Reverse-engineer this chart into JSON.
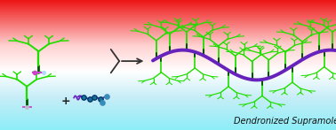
{
  "title": "Dendronized Supramolecular Polymers",
  "title_fontsize": 7.0,
  "title_color": "#111111",
  "dendrimer_color": "#22dd00",
  "stem_color": "#005500",
  "polymer_color": "#6622bb",
  "arrow_color": "#333333",
  "ball_color": "#003366",
  "small_mol_color": "#8833cc",
  "figsize": [
    3.78,
    1.47
  ],
  "dpi": 100,
  "bg_colors": [
    [
      0.0,
      [
        0.55,
        0.93,
        0.97
      ]
    ],
    [
      0.25,
      [
        0.78,
        0.93,
        0.97
      ]
    ],
    [
      0.45,
      [
        1.0,
        1.0,
        1.0
      ]
    ],
    [
      0.65,
      [
        1.0,
        0.82,
        0.82
      ]
    ],
    [
      1.0,
      [
        0.93,
        0.08,
        0.08
      ]
    ]
  ]
}
